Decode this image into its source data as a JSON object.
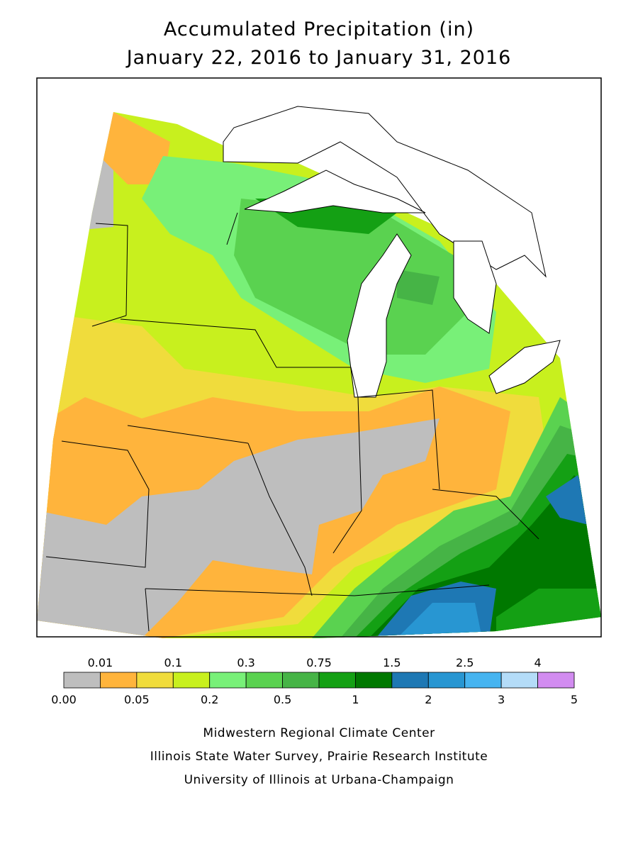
{
  "header": {
    "title": "Accumulated Precipitation (in)",
    "subtitle": "January 22, 2016 to January 31, 2016"
  },
  "legend": {
    "labels": [
      "0.00",
      "0.01",
      "0.05",
      "0.1",
      "0.2",
      "0.3",
      "0.5",
      "0.75",
      "1",
      "1.5",
      "2",
      "2.5",
      "3",
      "4",
      "5"
    ],
    "colors": [
      "#bebebe",
      "#ffb43c",
      "#f0dc3c",
      "#c8f01e",
      "#78f078",
      "#5ad250",
      "#46b446",
      "#14a014",
      "#007800",
      "#1e78b4",
      "#2896d2",
      "#46b4f0",
      "#b4dcf8",
      "#d28cf0"
    ]
  },
  "credits": [
    "Midwestern Regional Climate Center",
    "Illinois State Water Survey, Prairie Research Institute",
    "University of Illinois at Urbana-Champaign"
  ]
}
